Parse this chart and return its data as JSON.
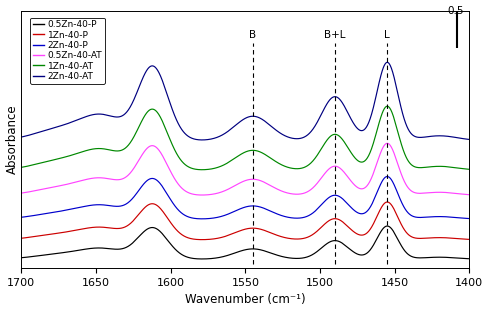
{
  "xmin": 1400,
  "xmax": 1700,
  "xlabel": "Wavenumber (cm⁻¹)",
  "ylabel": "Absorbance",
  "legend_labels": [
    "0.5Zn-40-P",
    "1Zn-40-P",
    "2Zn-40-P",
    "0.5Zn-40-AT",
    "1Zn-40-AT",
    "2Zn-40-AT"
  ],
  "legend_colors": [
    "#000000",
    "#cc0000",
    "#0000cc",
    "#ff44ff",
    "#008800",
    "#000080"
  ],
  "dashed_lines": [
    1545,
    1490,
    1455
  ],
  "dashed_labels": [
    "B",
    "B+L",
    "L"
  ],
  "scale_bar_value": 0.5,
  "offsets": [
    0.0,
    0.13,
    0.27,
    0.43,
    0.6,
    0.8
  ],
  "scales": [
    0.7,
    0.8,
    0.9,
    1.1,
    1.35,
    1.65
  ],
  "background_color": "#ffffff"
}
